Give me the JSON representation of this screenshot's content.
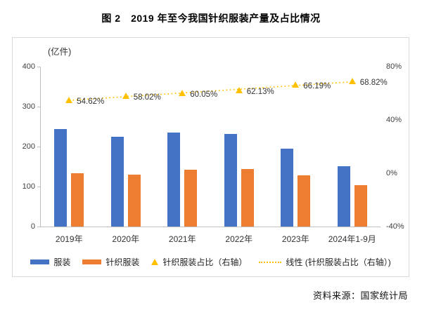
{
  "title": "图 2　2019 年至今我国针织服装产量及占比情况",
  "source_note": "资料来源：国家统计局",
  "colors": {
    "bar_blue": "#4472C4",
    "bar_orange": "#ED7D31",
    "marker_gold": "#FFC000",
    "axis_gray": "#BFBFBF",
    "border_gray": "#D9D9D9",
    "text_dark": "#333333"
  },
  "chart_data": {
    "type": "bar",
    "unit_label": "(亿件)",
    "categories": [
      "2019年",
      "2020年",
      "2021年",
      "2022年",
      "2023年",
      "2024年1-9月"
    ],
    "series": [
      {
        "name": "服装",
        "type": "bar",
        "axis": "left",
        "color": "#4472C4",
        "values": [
          244.7,
          223.7,
          235.4,
          232.4,
          193.9,
          151.5
        ]
      },
      {
        "name": "针织服装",
        "type": "bar",
        "axis": "left",
        "color": "#ED7D31",
        "values": [
          133.7,
          129.8,
          141.4,
          144.4,
          128.3,
          104.3
        ]
      },
      {
        "name": "针织服装占比（右轴）",
        "type": "scatter",
        "marker": "triangle",
        "axis": "right",
        "color": "#FFC000",
        "values": [
          54.62,
          58.02,
          60.05,
          62.13,
          66.19,
          68.82
        ],
        "labels": [
          "54.62%",
          "58.02%",
          "60.05%",
          "62.13%",
          "66.19%",
          "68.82%"
        ]
      }
    ],
    "trendline": {
      "name": "线性 (针织服装占比（右轴）)",
      "color": "#FFC000",
      "style": "dotted",
      "basis_series": 2
    },
    "left_axis": {
      "range": [
        0,
        400
      ],
      "tick_values": [
        400,
        300,
        200,
        100,
        0
      ],
      "tick_labels": [
        "400",
        "300",
        "200",
        "100",
        "0"
      ]
    },
    "right_axis": {
      "range": [
        -40,
        80
      ],
      "tick_values": [
        80,
        40,
        0,
        -40
      ],
      "tick_labels": [
        "80%",
        "40%",
        "0%",
        "-40%"
      ]
    },
    "legend_position": "bottom",
    "grid": false
  }
}
